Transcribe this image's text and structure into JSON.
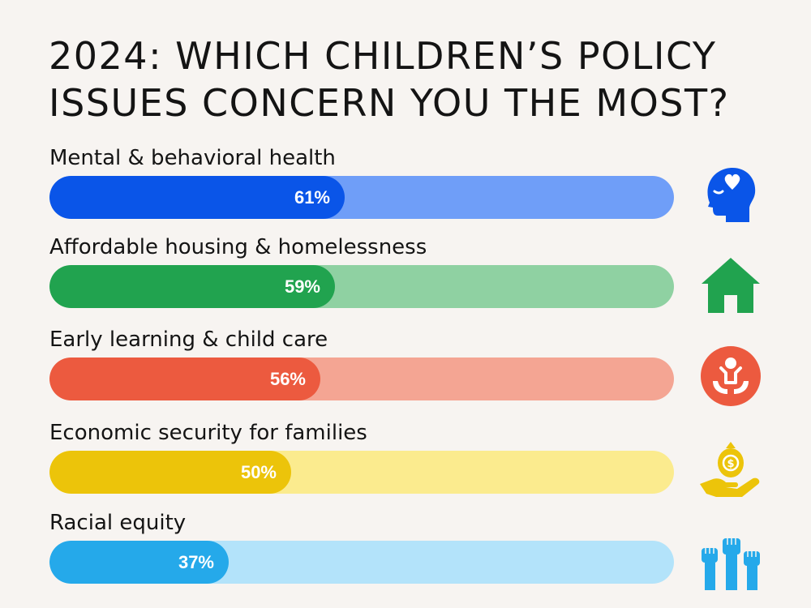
{
  "title_line1": "2024: WHICH CHILDREN’S POLICY",
  "title_line2": "ISSUES CONCERN YOU THE MOST?",
  "rows": [
    {
      "label": "Mental & behavioral health",
      "value_text": "61%",
      "fill_color": "#0a55e8",
      "track_color": "#6f9ef8",
      "icon": "head-heart-icon"
    },
    {
      "label": "Affordable housing & homelessness",
      "value_text": "59%",
      "fill_color": "#21a34f",
      "track_color": "#8fd1a2",
      "icon": "house-icon"
    },
    {
      "label": "Early learning & child care",
      "value_text": "56%",
      "fill_color": "#ec5a3f",
      "track_color": "#f4a593",
      "icon": "child-care-icon"
    },
    {
      "label": "Economic security for families",
      "value_text": "50%",
      "fill_color": "#ecc40a",
      "track_color": "#fbeb8e",
      "icon": "money-hand-icon"
    },
    {
      "label": "Racial equity",
      "value_text": "37%",
      "fill_color": "#25a9ea",
      "track_color": "#b3e3fa",
      "icon": "raised-fists-icon"
    }
  ],
  "chart_data": {
    "type": "bar",
    "orientation": "horizontal",
    "title": "2024: WHICH CHILDREN’S POLICY ISSUES CONCERN YOU THE MOST?",
    "categories": [
      "Mental & behavioral health",
      "Affordable housing & homelessness",
      "Early learning & child care",
      "Economic security for families",
      "Racial equity"
    ],
    "values": [
      61,
      59,
      56,
      50,
      37
    ],
    "xlim": [
      0,
      100
    ],
    "xlabel": "",
    "ylabel": "",
    "grid": false,
    "legend": "none"
  }
}
